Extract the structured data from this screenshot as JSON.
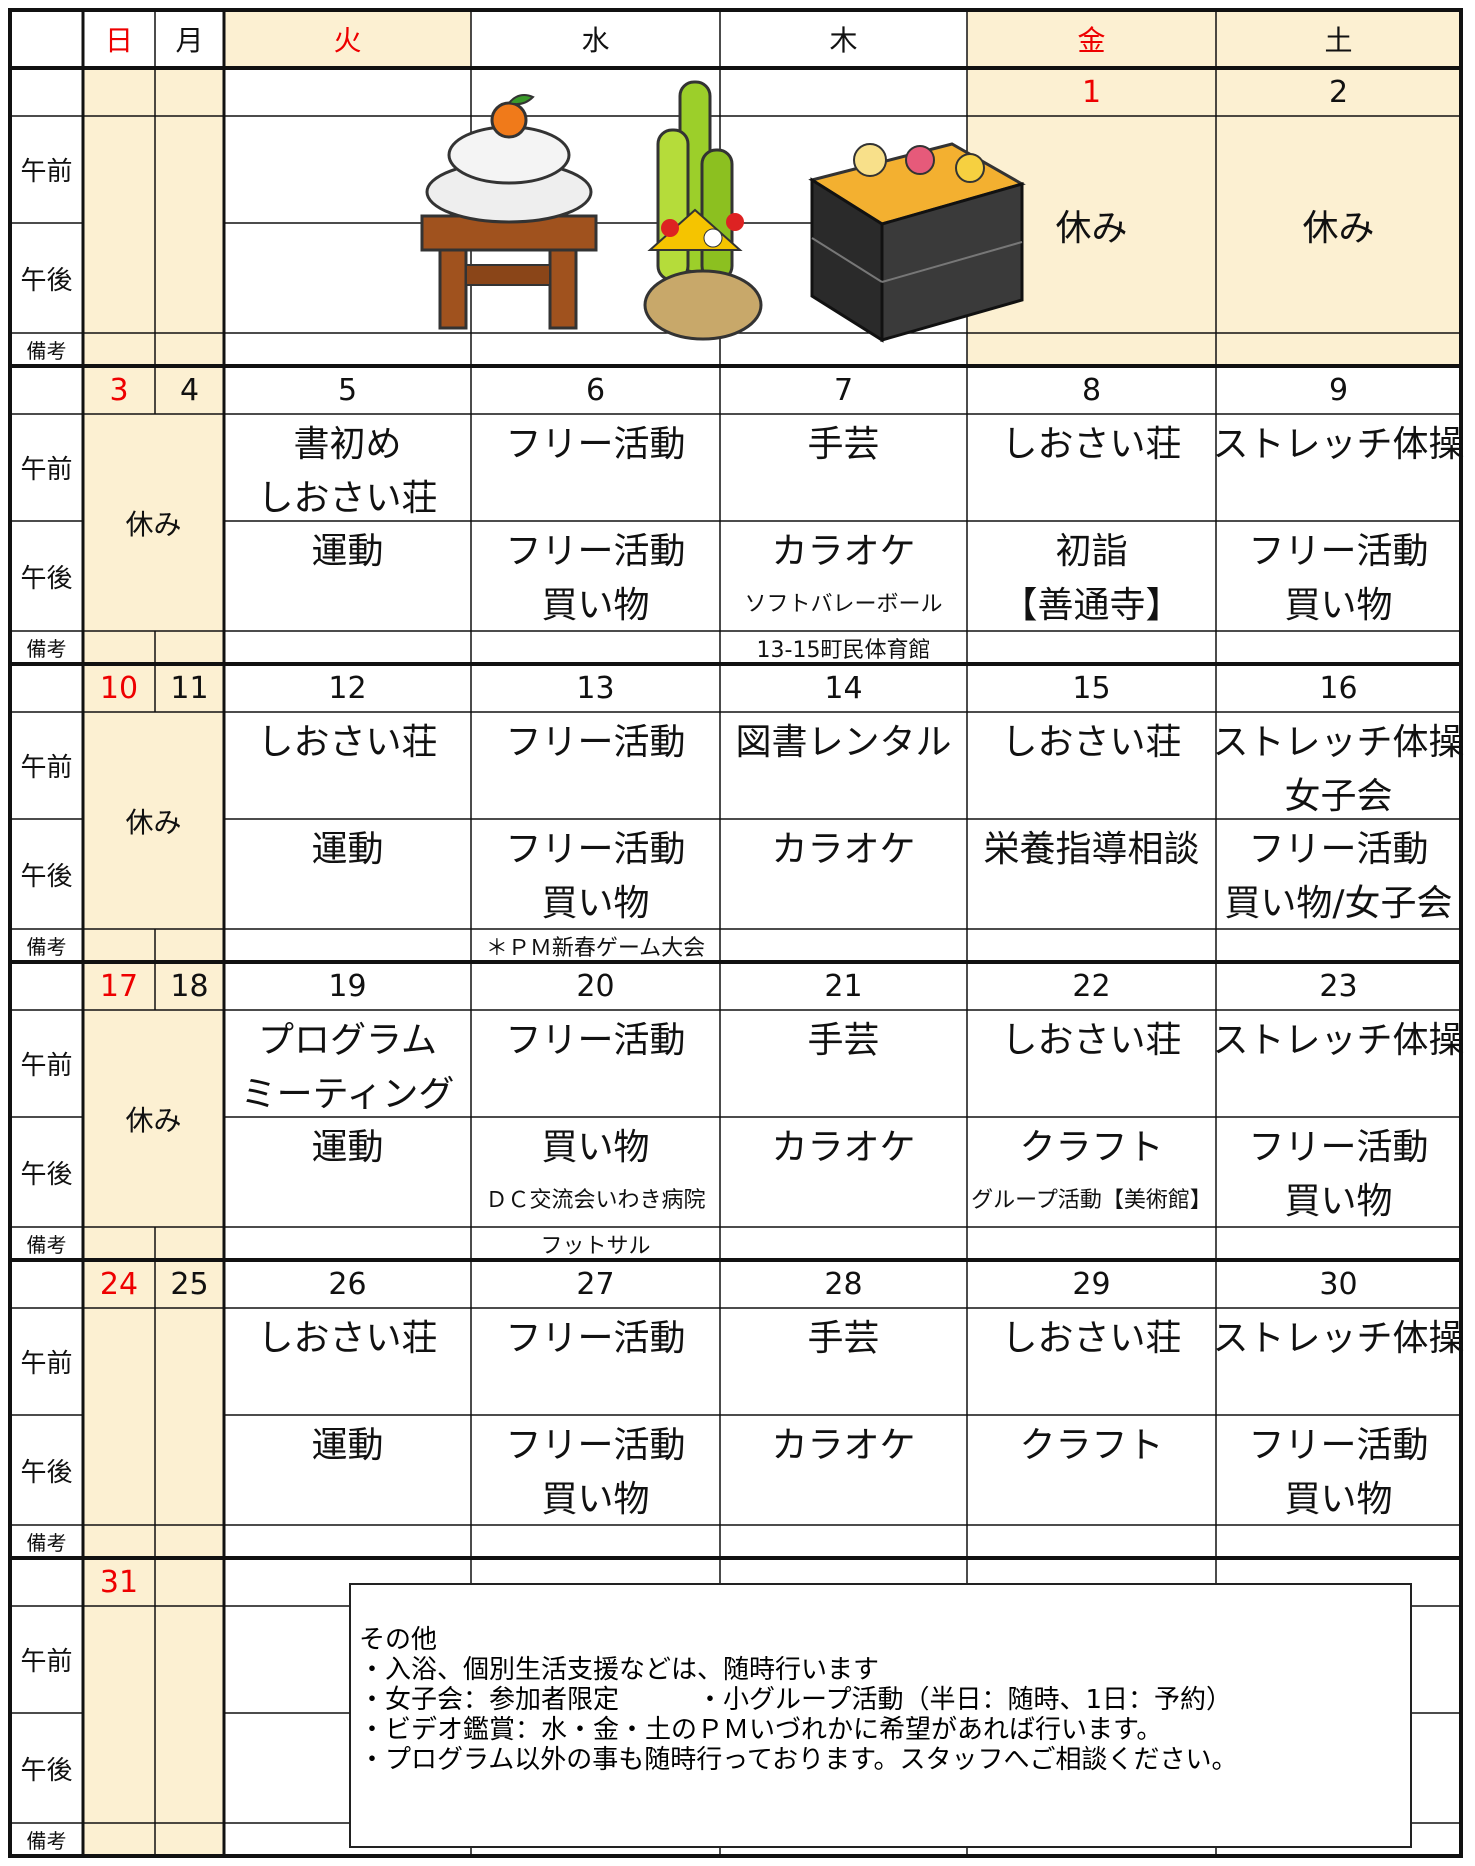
{
  "header": {
    "days": [
      "日",
      "月",
      "火",
      "水",
      "木",
      "金",
      "土"
    ]
  },
  "row_labels": {
    "am": "午前",
    "pm": "午後",
    "note": "備考"
  },
  "weeks": [
    {
      "dates": [
        null,
        null,
        null,
        null,
        null,
        1,
        2
      ],
      "days": [
        null,
        null,
        null,
        {
          "off": "休み"
        },
        {
          "off": "休み"
        }
      ]
    },
    {
      "dates": [
        3,
        4,
        5,
        6,
        7,
        8,
        9
      ],
      "off": "休み",
      "days": [
        {
          "am": [
            "書初め",
            "しおさい荘"
          ],
          "pm": [
            "運動"
          ]
        },
        {
          "am": [
            "フリー活動"
          ],
          "pm": [
            "フリー活動",
            "買い物"
          ]
        },
        {
          "am": [
            "手芸"
          ],
          "pm": [
            "カラオケ"
          ],
          "pm_sub": "ソフトバレーボール",
          "note": "13-15町民体育館"
        },
        {
          "am": [
            "しおさい荘"
          ],
          "pm": [
            "初詣",
            "【善通寺】"
          ]
        },
        {
          "am": [
            "ストレッチ体操"
          ],
          "pm": [
            "フリー活動",
            "買い物"
          ]
        }
      ]
    },
    {
      "dates": [
        10,
        11,
        12,
        13,
        14,
        15,
        16
      ],
      "off": "休み",
      "days": [
        {
          "am": [
            "しおさい荘"
          ],
          "pm": [
            "運動"
          ]
        },
        {
          "am": [
            "フリー活動"
          ],
          "pm": [
            "フリー活動",
            "買い物"
          ],
          "note": "＊ＰＭ新春ゲーム大会"
        },
        {
          "am": [
            "図書レンタル"
          ],
          "pm": [
            "カラオケ"
          ]
        },
        {
          "am": [
            "しおさい荘"
          ],
          "pm": [
            "栄養指導相談"
          ]
        },
        {
          "am": [
            "ストレッチ体操",
            "女子会"
          ],
          "pm": [
            "フリー活動",
            "買い物/女子会"
          ]
        }
      ]
    },
    {
      "dates": [
        17,
        18,
        19,
        20,
        21,
        22,
        23
      ],
      "off": "休み",
      "days": [
        {
          "am": [
            "プログラム",
            "ミーティング"
          ],
          "pm": [
            "運動"
          ]
        },
        {
          "am": [
            "フリー活動"
          ],
          "pm": [
            "買い物"
          ],
          "pm_sub": "ＤＣ交流会いわき病院",
          "note": "フットサル"
        },
        {
          "am": [
            "手芸"
          ],
          "pm": [
            "カラオケ"
          ]
        },
        {
          "am": [
            "しおさい荘"
          ],
          "pm": [
            "クラフト"
          ],
          "pm_sub": "グループ活動【美術館】"
        },
        {
          "am": [
            "ストレッチ体操"
          ],
          "pm": [
            "フリー活動",
            "買い物"
          ]
        }
      ]
    },
    {
      "dates": [
        24,
        25,
        26,
        27,
        28,
        29,
        30
      ],
      "days": [
        {
          "am": [
            "しおさい荘"
          ],
          "pm": [
            "運動"
          ]
        },
        {
          "am": [
            "フリー活動"
          ],
          "pm": [
            "フリー活動",
            "買い物"
          ]
        },
        {
          "am": [
            "手芸"
          ],
          "pm": [
            "カラオケ"
          ]
        },
        {
          "am": [
            "しおさい荘"
          ],
          "pm": [
            "クラフト"
          ]
        },
        {
          "am": [
            "ストレッチ体操"
          ],
          "pm": [
            "フリー活動",
            "買い物"
          ]
        }
      ]
    },
    {
      "dates": [
        31,
        null,
        null,
        null,
        null,
        null,
        null
      ],
      "days": []
    }
  ],
  "other": {
    "title": "その他",
    "items": [
      "・入浴、個別生活支援などは、随時行います",
      "・女子会：参加者限定　　　・小グループ活動（半日：随時、1日：予約）",
      "・ビデオ鑑賞：水・金・土のＰＭいづれかに希望があれば行います。",
      "・プログラム以外の事も随時行っております。スタッフへご相談ください。"
    ]
  }
}
